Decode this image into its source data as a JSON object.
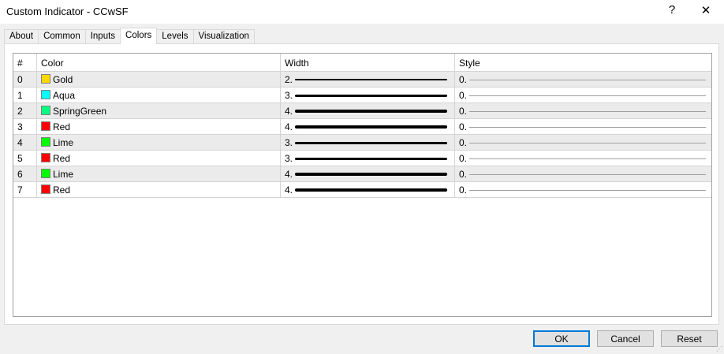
{
  "window": {
    "title": "Custom Indicator - CCwSF",
    "help": "?",
    "close": "✕"
  },
  "tabs": [
    "About",
    "Common",
    "Inputs",
    "Colors",
    "Levels",
    "Visualization"
  ],
  "active_tab": "Colors",
  "table": {
    "headers": [
      "#",
      "Color",
      "Width",
      "Style"
    ],
    "rows": [
      {
        "index": "0",
        "color": "Gold",
        "hex": "#ffd700",
        "width": "2.",
        "style": "0."
      },
      {
        "index": "1",
        "color": "Aqua",
        "hex": "#00ffff",
        "width": "3.",
        "style": "0."
      },
      {
        "index": "2",
        "color": "SpringGreen",
        "hex": "#00ff7f",
        "width": "4.",
        "style": "0."
      },
      {
        "index": "3",
        "color": "Red",
        "hex": "#ff0000",
        "width": "4.",
        "style": "0."
      },
      {
        "index": "4",
        "color": "Lime",
        "hex": "#00ff00",
        "width": "3.",
        "style": "0."
      },
      {
        "index": "5",
        "color": "Red",
        "hex": "#ff0000",
        "width": "3.",
        "style": "0."
      },
      {
        "index": "6",
        "color": "Lime",
        "hex": "#00ff00",
        "width": "4.",
        "style": "0."
      },
      {
        "index": "7",
        "color": "Red",
        "hex": "#ff0000",
        "width": "4.",
        "style": "0."
      }
    ]
  },
  "buttons": {
    "ok": "OK",
    "cancel": "Cancel",
    "reset": "Reset"
  }
}
